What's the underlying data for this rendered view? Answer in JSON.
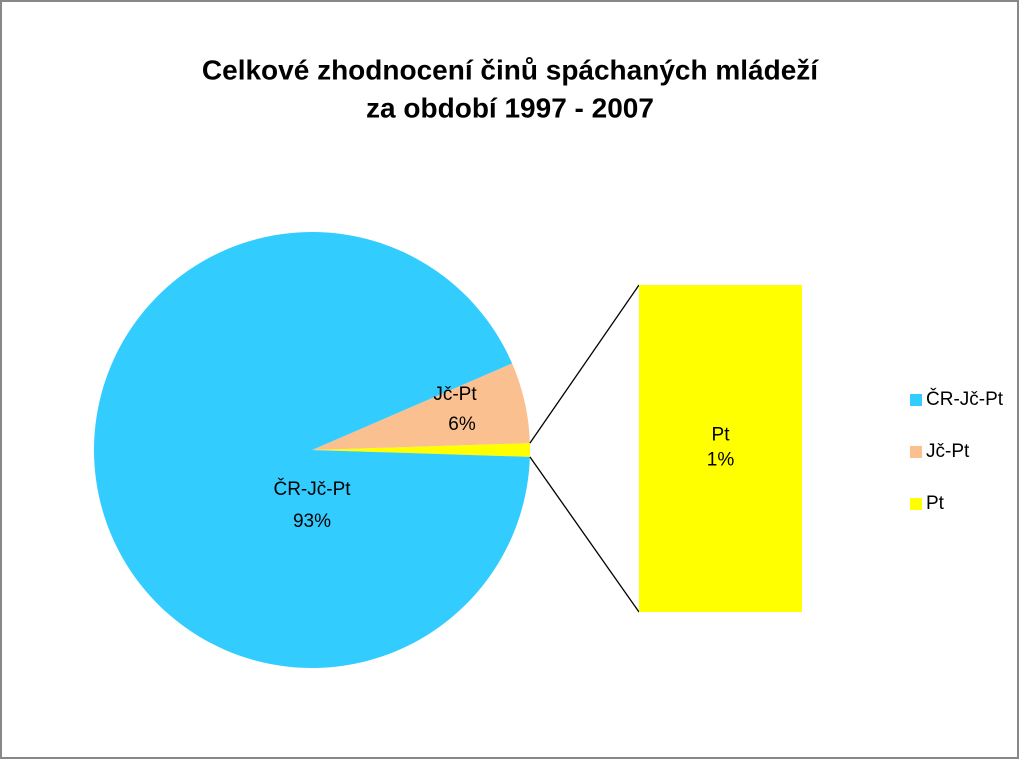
{
  "chart_data": {
    "type": "pie",
    "title": [
      "Celkové zhodnocení činů spáchaných mládeží",
      "za období 1997 - 2007"
    ],
    "categories": [
      "ČR-Jč-Pt",
      "Jč-Pt",
      "Pt"
    ],
    "values": [
      93,
      6,
      1
    ],
    "value_labels": [
      "93%",
      "6%",
      "1%"
    ],
    "colors": [
      "#33ccff",
      "#fac090",
      "#ffff00"
    ],
    "split": 1,
    "legend": "right"
  }
}
